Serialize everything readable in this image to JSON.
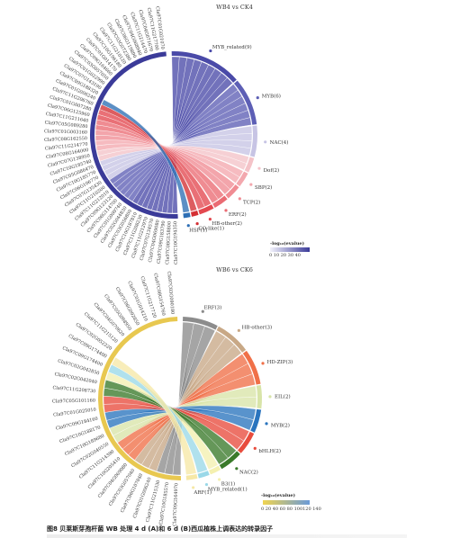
{
  "panels": [
    {
      "id": "A",
      "title": "WB4 vs CK4",
      "genes": [
        "Cla97C10G194350",
        "Cla97C08G158800",
        "Cla97C09G183790",
        "Cla97C04G069080",
        "Cla97C07G134570",
        "Cla97C11G212970",
        "Cla97C11G208230",
        "Cla97C10G187810",
        "Cla97C03G056800",
        "Cla97C02G044830",
        "Cla97C01G000740",
        "Cla97C06G114700",
        "Cla97C09G123120",
        "Cla97C11G212010",
        "Cla97C11G210200",
        "Cla97C07G135430",
        "Cla97C06G106770",
        "Cla97C10G185770",
        "Cla97C05G086470",
        "Cla97C10G185740",
        "Cla97C07G138950",
        "Cla97C08G164000",
        "Cla97C11G214770",
        "Cla97C08G162550",
        "Cla97C01G003160",
        "Cla97C05G089280",
        "Cla97C11G211640",
        "Cla97C06G125960",
        "Cla97C01G007280",
        "Cla97C11G206760",
        "Cla97C01G006240",
        "Cla97C09G188320",
        "Cla97C07G143190",
        "Cla97C01G022990",
        "Cla97C03G057050",
        "Cla97C09G164660",
        "Cla97C01G014170",
        "Cla97C10G196180",
        "Cla97C11G210120",
        "Cla97C03G072380",
        "Cla97C06G119890",
        "Cla97C04G068940",
        "Cla97C11G214470",
        "Cla97C04G071670",
        "Cla97C11G217700",
        "Cla97C01G021070"
      ],
      "tfs": [
        {
          "label": "MYB_related(9)",
          "color": "#4a4aa8",
          "size": 9
        },
        {
          "label": "MYB(6)",
          "color": "#5d5fb5",
          "size": 6
        },
        {
          "label": "NAC(4)",
          "color": "#c7c4e4",
          "size": 4
        },
        {
          "label": "Dof(2)",
          "color": "#f4c3c8",
          "size": 2
        },
        {
          "label": "SBP(2)",
          "color": "#f3a8ae",
          "size": 2
        },
        {
          "label": "TCP(2)",
          "color": "#f08c93",
          "size": 2
        },
        {
          "label": "ERF(2)",
          "color": "#ea6b73",
          "size": 2
        },
        {
          "label": "HB-other(2)",
          "color": "#e3484f",
          "size": 2
        },
        {
          "label": "CO-like(1)",
          "color": "#d42f33",
          "size": 1
        },
        {
          "label": "HSF(1)",
          "color": "#2d6fb5",
          "size": 1
        }
      ],
      "gene_ring_color": "#3b3b99",
      "legend": {
        "title": "-log₁₀(evalue)",
        "ticks": "0  10  20  30  40",
        "start": "#f2f2fb",
        "end": "#3b3b99"
      }
    },
    {
      "id": "B",
      "title": "WB6 vs CK6",
      "genes": [
        "Cla97C09G164970",
        "Cla97C10G185570",
        "Cla97C11G215330",
        "Cla97C01G006240",
        "Cla97C06G107040",
        "Cla97C03G057040",
        "Cla97C04G069080",
        "Cla97C10G205410",
        "Cla97C11G214390",
        "Cla97C02G040550",
        "Cla97C10G189680",
        "Cla97C10G188170",
        "Cla97C09G184160",
        "Cla97C01G025010",
        "Cla97C05G101160",
        "Cla97C11G208730",
        "Cla97C02G042040",
        "Cla97C02G042850",
        "Cla97C09G174400",
        "Cla97C09G174400",
        "Cla97C02G052220",
        "Cla97C11G215120",
        "Cla97C04G070620",
        "Cla97C05G098950",
        "Cla97C06G092850",
        "Cla97C01G014210",
        "Cla97C11G217720",
        "Cla97C08G154760",
        "Cla97C03G090180"
      ],
      "tfs": [
        {
          "label": "ERF(3)",
          "color": "#8c8c8c",
          "size": 3
        },
        {
          "label": "HB-other(3)",
          "color": "#c8a886",
          "size": 3
        },
        {
          "label": "HD-ZIP(3)",
          "color": "#f07048",
          "size": 3
        },
        {
          "label": "EIL(2)",
          "color": "#d8e4a8",
          "size": 2
        },
        {
          "label": "MYB(2)",
          "color": "#2a74be",
          "size": 2
        },
        {
          "label": "bHLH(2)",
          "color": "#e84c3d",
          "size": 2
        },
        {
          "label": "NAC(2)",
          "color": "#3a7a2a",
          "size": 2
        },
        {
          "label": "B3(1)",
          "color": "#f4f0b0",
          "size": 1
        },
        {
          "label": "MYB_related(1)",
          "color": "#9ad8e8",
          "size": 1
        },
        {
          "label": "ARF(1)",
          "color": "#f6e8a6",
          "size": 1
        }
      ],
      "gene_ring_color": "#e8c850",
      "legend": {
        "title": "-log₁₀(evalue)",
        "ticks": "0  20 40 60  80 100120 140",
        "start": "#f0d450",
        "end": "#6a9ad8"
      }
    }
  ],
  "caption": "图8   贝莱斯芽孢杆菌 WB 处理 4 d (A)和 6 d (B)西瓜植株上调表达的转录因子"
}
